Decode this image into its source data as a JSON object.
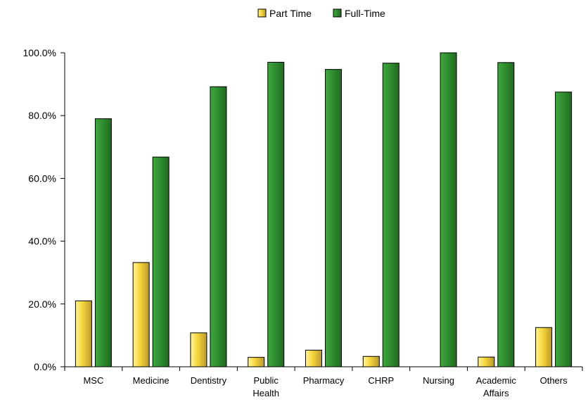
{
  "chart_data": {
    "type": "bar",
    "categories": [
      [
        "MSC"
      ],
      [
        "Medicine"
      ],
      [
        "Dentistry"
      ],
      [
        "Public",
        "Health"
      ],
      [
        "Pharmacy"
      ],
      [
        "CHRP"
      ],
      [
        "Nursing"
      ],
      [
        "Academic",
        "Affairs"
      ],
      [
        "Others"
      ]
    ],
    "series": [
      {
        "name": "Part Time",
        "values": [
          21.0,
          33.2,
          10.8,
          3.0,
          5.3,
          3.3,
          0.0,
          3.1,
          12.5
        ],
        "color": "#F2D03A",
        "edge": "#9E8A20"
      },
      {
        "name": "Full-Time",
        "values": [
          79.0,
          66.8,
          89.2,
          97.0,
          94.7,
          96.7,
          100.0,
          96.9,
          87.5
        ],
        "color": "#2E8B2E",
        "edge": "#1E5E1E"
      }
    ],
    "y_ticks": [
      "0.0%",
      "20.0%",
      "40.0%",
      "60.0%",
      "80.0%",
      "100.0%"
    ],
    "ylim": [
      0,
      100
    ],
    "legend_position": "top",
    "grid": false
  }
}
